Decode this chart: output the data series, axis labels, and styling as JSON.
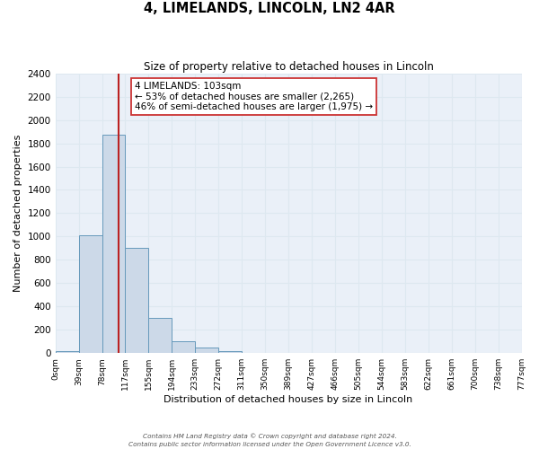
{
  "title": "4, LIMELANDS, LINCOLN, LN2 4AR",
  "subtitle": "Size of property relative to detached houses in Lincoln",
  "xlabel": "Distribution of detached houses by size in Lincoln",
  "ylabel": "Number of detached properties",
  "bin_labels": [
    "0sqm",
    "39sqm",
    "78sqm",
    "117sqm",
    "155sqm",
    "194sqm",
    "233sqm",
    "272sqm",
    "311sqm",
    "350sqm",
    "389sqm",
    "427sqm",
    "466sqm",
    "505sqm",
    "544sqm",
    "583sqm",
    "622sqm",
    "661sqm",
    "700sqm",
    "738sqm",
    "777sqm"
  ],
  "bar_values": [
    20,
    1010,
    1870,
    900,
    300,
    105,
    45,
    20,
    0,
    0,
    0,
    0,
    0,
    0,
    0,
    0,
    0,
    0,
    0,
    0
  ],
  "bar_color": "#ccd9e8",
  "bar_edge_color": "#6699bb",
  "grid_color": "#dde8f0",
  "background_color": "#eaf0f8",
  "fig_background": "#ffffff",
  "vline_x_bin": 2.72,
  "vline_color": "#bb2222",
  "annotation_title": "4 LIMELANDS: 103sqm",
  "annotation_line1": "← 53% of detached houses are smaller (2,265)",
  "annotation_line2": "46% of semi-detached houses are larger (1,975) →",
  "annotation_box_facecolor": "#ffffff",
  "annotation_box_edgecolor": "#cc3333",
  "ylim": [
    0,
    2400
  ],
  "yticks": [
    0,
    200,
    400,
    600,
    800,
    1000,
    1200,
    1400,
    1600,
    1800,
    2000,
    2200,
    2400
  ],
  "footer_line1": "Contains HM Land Registry data © Crown copyright and database right 2024.",
  "footer_line2": "Contains public sector information licensed under the Open Government Licence v3.0."
}
